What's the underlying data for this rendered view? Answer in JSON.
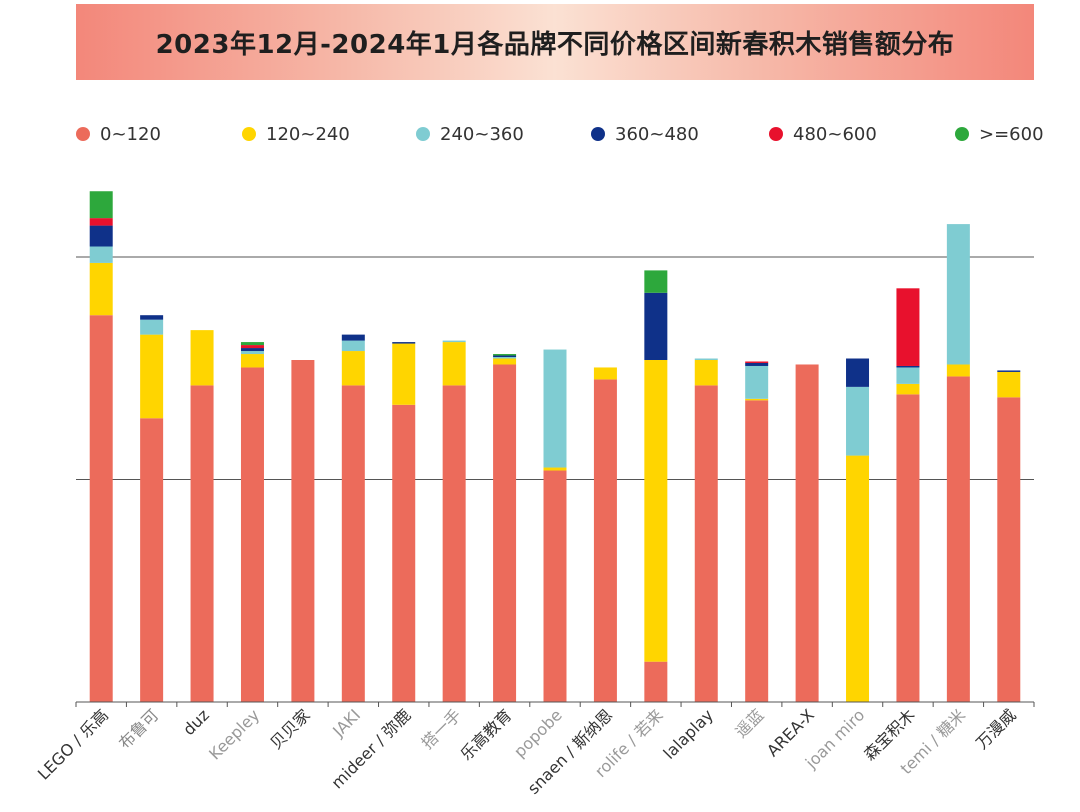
{
  "chart_data": {
    "type": "bar",
    "stacked": true,
    "title": "2023年12月-2024年1月各品牌不同价格区间新春积木销售额分布",
    "xlabel": "",
    "ylabel": "",
    "ylim": [
      0,
      229
    ],
    "grid": true,
    "legend_position": "top",
    "categories": [
      "LEGO / 乐高",
      "布鲁可",
      "duz",
      "Keepley",
      "贝贝家",
      "JAKI",
      "mideer / 弥鹿",
      "搭一手",
      "乐高教育",
      "popobe",
      "snaen / 斯纳恩",
      "rolife / 若来",
      "lalaplay",
      "遥蓝",
      "AREA-X",
      "joan miro",
      "森宝积木",
      "temi / 糖米",
      "万漫威"
    ],
    "category_colors": [
      "#333333",
      "#888888",
      "#333333",
      "#999999",
      "#333333",
      "#999999",
      "#333333",
      "#999999",
      "#333333",
      "#999999",
      "#333333",
      "#999999",
      "#333333",
      "#999999",
      "#333333",
      "#999999",
      "#333333",
      "#999999",
      "#333333"
    ],
    "series": [
      {
        "name": "0~120",
        "color": "#ec6b5b",
        "values": [
          129.5,
          95.0,
          106.0,
          112.0,
          114.5,
          106.0,
          99.5,
          106.0,
          113.0,
          77.5,
          108.0,
          13.5,
          106.0,
          101.0,
          113.0,
          0,
          103.0,
          109.0,
          102.0
        ]
      },
      {
        "name": "120~240",
        "color": "#ffd500",
        "values": [
          17.5,
          28.0,
          18.5,
          4.5,
          0,
          11.5,
          20.5,
          14.5,
          2.0,
          1.0,
          4.0,
          101.0,
          8.5,
          0.5,
          0,
          82.5,
          3.5,
          4.0,
          8.5
        ]
      },
      {
        "name": "240~360",
        "color": "#7fccd2",
        "values": [
          5.5,
          5.0,
          0,
          1.0,
          0,
          3.5,
          0,
          0.5,
          0.5,
          39.5,
          0,
          0,
          0.5,
          11.0,
          0,
          23.0,
          5.5,
          47.0,
          0
        ]
      },
      {
        "name": "360~480",
        "color": "#0f3189",
        "values": [
          7.0,
          1.5,
          0,
          1.0,
          0,
          2.0,
          0.5,
          0,
          0.5,
          0,
          0,
          22.5,
          0,
          1.0,
          0,
          9.5,
          0.5,
          0,
          0.5
        ]
      },
      {
        "name": "480~600",
        "color": "#e8112d",
        "values": [
          2.5,
          0,
          0,
          1.0,
          0,
          0,
          0,
          0,
          0,
          0,
          0,
          0,
          0,
          0.5,
          0,
          0,
          26.0,
          0,
          0
        ]
      },
      {
        "name": ">=600",
        "color": "#2da83c",
        "values": [
          9.0,
          0,
          0,
          1.0,
          0,
          0,
          0,
          0,
          0.5,
          0,
          0,
          7.5,
          0,
          0,
          0,
          0,
          0,
          0,
          0
        ]
      }
    ],
    "gridlines": [
      74.5,
      149.0
    ]
  }
}
